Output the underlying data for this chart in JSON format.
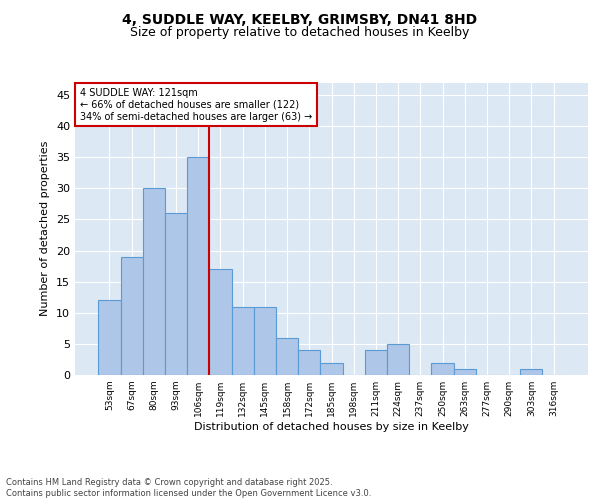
{
  "title1": "4, SUDDLE WAY, KEELBY, GRIMSBY, DN41 8HD",
  "title2": "Size of property relative to detached houses in Keelby",
  "xlabel": "Distribution of detached houses by size in Keelby",
  "ylabel": "Number of detached properties",
  "categories": [
    "53sqm",
    "67sqm",
    "80sqm",
    "93sqm",
    "106sqm",
    "119sqm",
    "132sqm",
    "145sqm",
    "158sqm",
    "172sqm",
    "185sqm",
    "198sqm",
    "211sqm",
    "224sqm",
    "237sqm",
    "250sqm",
    "263sqm",
    "277sqm",
    "290sqm",
    "303sqm",
    "316sqm"
  ],
  "values": [
    12,
    19,
    30,
    26,
    35,
    17,
    11,
    11,
    6,
    4,
    2,
    0,
    4,
    5,
    0,
    2,
    1,
    0,
    0,
    1,
    0
  ],
  "bar_color": "#aec6e8",
  "bar_edge_color": "#5b9bd5",
  "background_color": "#dce9f5",
  "grid_color": "#ffffff",
  "vline_x_index": 5,
  "vline_color": "#cc0000",
  "annotation_title": "4 SUDDLE WAY: 121sqm",
  "annotation_line1": "← 66% of detached houses are smaller (122)",
  "annotation_line2": "34% of semi-detached houses are larger (63) →",
  "annotation_box_color": "#ffffff",
  "annotation_box_edge": "#cc0000",
  "ylim": [
    0,
    47
  ],
  "yticks": [
    0,
    5,
    10,
    15,
    20,
    25,
    30,
    35,
    40,
    45
  ],
  "footer1": "Contains HM Land Registry data © Crown copyright and database right 2025.",
  "footer2": "Contains public sector information licensed under the Open Government Licence v3.0."
}
